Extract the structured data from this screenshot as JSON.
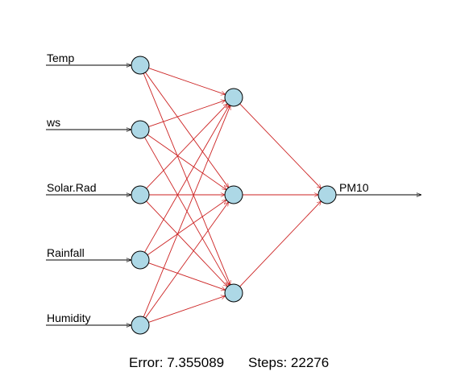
{
  "network": {
    "inputs": [
      "Temp",
      "ws",
      "Solar.Rad",
      "Rainfall",
      "Humidity"
    ],
    "hidden_count": 3,
    "output": "PM10"
  },
  "footer": {
    "error_label": "Error: 7.355089",
    "steps_label": "Steps: 22276"
  },
  "colors": {
    "node_fill": "#add8e6",
    "node_stroke": "#000000",
    "connection": "#cc2222",
    "io_line": "#000000"
  }
}
